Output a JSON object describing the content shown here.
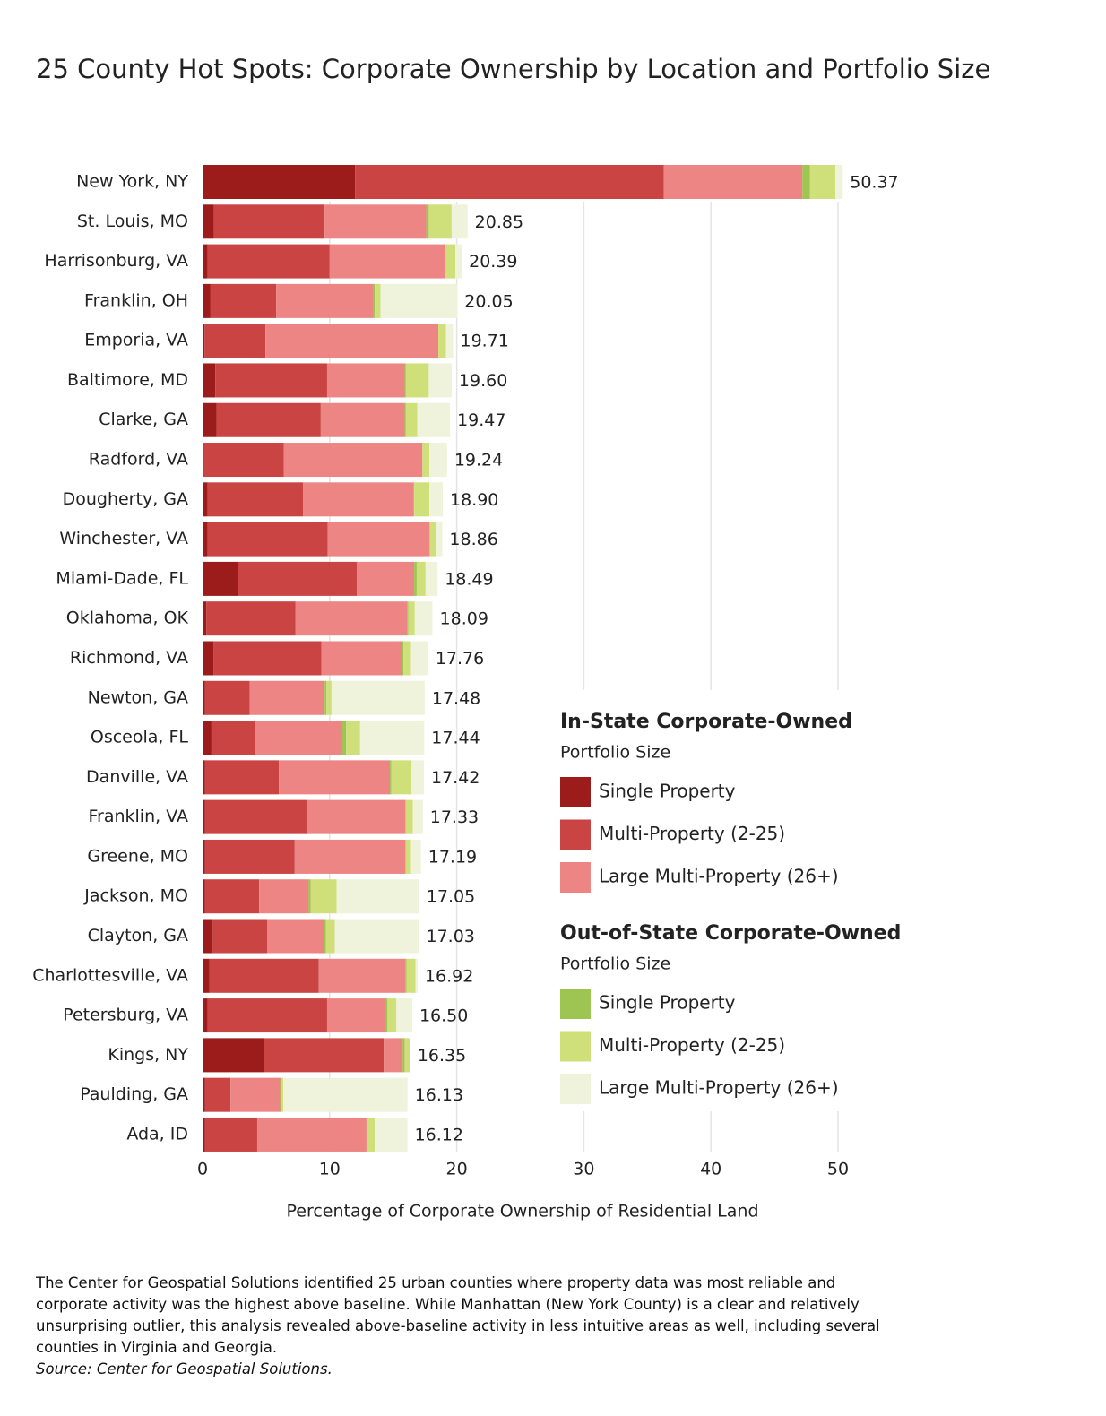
{
  "chart_data": {
    "type": "stacked-bar-horizontal",
    "title": "25 County Hot Spots: Corporate Ownership by Location and Portfolio Size",
    "xlabel": "Percentage of Corporate Ownership of Residential Land",
    "note": "The Center for Geospatial Solutions identified 25 urban counties where property data was most reliable and corporate activity was the highest above baseline. While Manhattan (New York County) is a clear and relatively unsurprising outlier, this analysis revealed above-baseline activity in less intuitive areas as well, including several counties in Virginia and Georgia.",
    "source": "Source: Center for Geospatial Solutions.",
    "categories": [
      "New York, NY",
      "St. Louis, MO",
      "Harrisonburg, VA",
      "Franklin, OH",
      "Emporia, VA",
      "Baltimore, MD",
      "Clarke, GA",
      "Radford, VA",
      "Dougherty, GA",
      "Winchester, VA",
      "Miami-Dade, FL",
      "Oklahoma, OK",
      "Richmond, VA",
      "Newton, GA",
      "Osceola, FL",
      "Danville, VA",
      "Franklin, VA",
      "Greene, MO",
      "Jackson, MO",
      "Clayton, GA",
      "Charlottesville, VA",
      "Petersburg, VA",
      "Kings, NY",
      "Paulding, GA",
      "Ada, ID"
    ],
    "totals": [
      50.37,
      20.85,
      20.39,
      20.05,
      19.71,
      {
        "value": 19.6,
        "label": "19.60"
      },
      19.47,
      19.24,
      {
        "value": 18.9,
        "label": "18.90"
      },
      18.86,
      18.49,
      18.09,
      17.76,
      17.48,
      17.44,
      17.42,
      17.33,
      17.19,
      17.05,
      17.03,
      16.92,
      {
        "value": 16.5,
        "label": "16.50"
      },
      16.35,
      16.13,
      16.12
    ],
    "legend_groups": [
      {
        "title": "In-State Corporate-Owned",
        "subtitle": "Portfolio Size"
      },
      {
        "title": "Out-of-State Corporate-Owned",
        "subtitle": "Portfolio Size"
      }
    ],
    "series": [
      {
        "name": "Single Property",
        "group": 0,
        "color": "#9b1c1a",
        "values": [
          12.0,
          0.9,
          0.4,
          0.6,
          0.15,
          1.0,
          1.1,
          0.1,
          0.4,
          0.4,
          2.75,
          0.3,
          0.85,
          0.2,
          0.7,
          0.2,
          0.2,
          0.2,
          0.2,
          0.8,
          0.55,
          0.4,
          4.85,
          0.2,
          0.2
        ]
      },
      {
        "name": "Multi-Property (2-25)",
        "group": 0,
        "color": "#c94442",
        "values": [
          24.3,
          8.7,
          9.6,
          5.2,
          4.8,
          8.8,
          8.2,
          6.3,
          7.5,
          9.45,
          9.4,
          7.0,
          8.5,
          3.5,
          3.45,
          5.8,
          8.05,
          7.05,
          4.25,
          4.3,
          8.6,
          9.4,
          9.4,
          2.0,
          4.1
        ]
      },
      {
        "name": "Large Multi-Property (26+)",
        "group": 0,
        "color": "#ec8583",
        "values": [
          10.9,
          8.0,
          9.1,
          7.6,
          13.6,
          6.1,
          6.6,
          10.9,
          8.7,
          8.0,
          4.5,
          8.8,
          6.35,
          5.9,
          6.85,
          8.75,
          7.7,
          8.7,
          3.9,
          4.45,
          6.8,
          4.65,
          1.5,
          3.9,
          8.6
        ]
      },
      {
        "name": "Single Property",
        "group": 1,
        "color": "#9ec552",
        "values": [
          0.6,
          0.2,
          0,
          0.15,
          0,
          0.1,
          0.1,
          0,
          0.05,
          0.05,
          0.2,
          0.1,
          0.1,
          0.15,
          0.3,
          0.1,
          0.05,
          0.05,
          0.15,
          0.15,
          0.1,
          0.1,
          0.15,
          0.1,
          0.1
        ]
      },
      {
        "name": "Multi-Property (2-25)",
        "group": 1,
        "color": "#cfe07a",
        "values": [
          2.0,
          1.8,
          0.8,
          0.45,
          0.6,
          1.8,
          0.9,
          0.55,
          1.2,
          0.5,
          0.7,
          0.5,
          0.6,
          0.4,
          1.1,
          1.6,
          0.55,
          0.4,
          2.05,
          0.7,
          0.7,
          0.7,
          0.4,
          0.15,
          0.55
        ]
      },
      {
        "name": "Large Multi-Property (26+)",
        "group": 1,
        "color": "#eff3dc",
        "values": [
          0.57,
          1.25,
          0.49,
          6.05,
          0.56,
          1.8,
          2.57,
          1.39,
          1.05,
          0.46,
          0.94,
          1.39,
          1.36,
          7.33,
          5.04,
          0.97,
          0.78,
          0.79,
          6.5,
          6.63,
          0.17,
          1.25,
          0.05,
          9.78,
          2.57
        ]
      }
    ],
    "xlim": [
      0,
      50
    ],
    "xticks": [
      0,
      10,
      20,
      30,
      40,
      50
    ],
    "grid": true
  }
}
